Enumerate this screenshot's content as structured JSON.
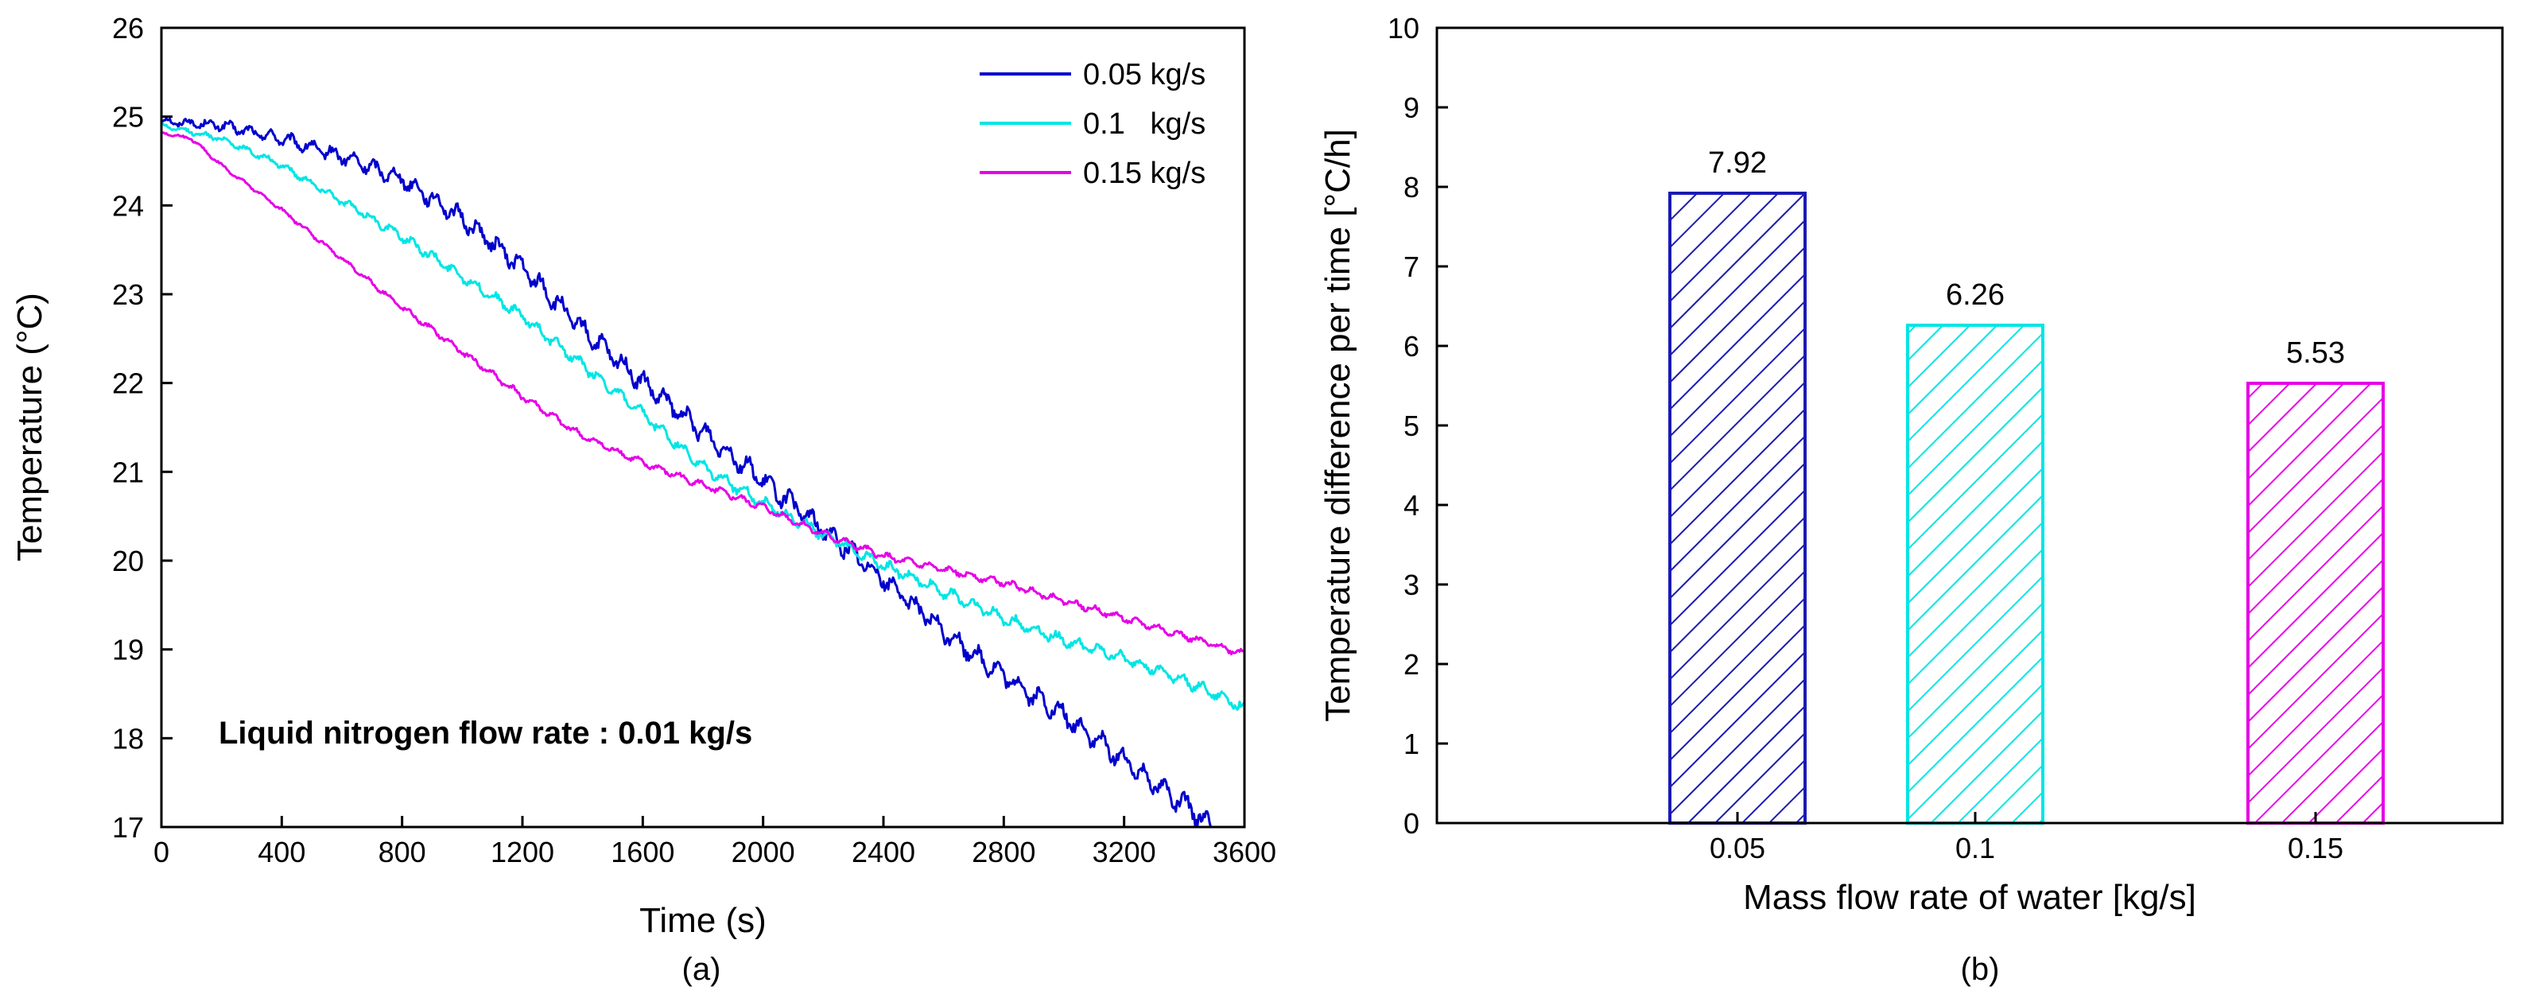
{
  "chart_data": [
    {
      "type": "line",
      "panel_label": "(a)",
      "xlabel": "Time (s)",
      "ylabel": "Temperature (°C)",
      "xlim": [
        0,
        3600
      ],
      "ylim": [
        17,
        26
      ],
      "x_ticks": [
        "0",
        "400",
        "800",
        "1200",
        "1600",
        "2000",
        "2400",
        "2800",
        "3200",
        "3600"
      ],
      "y_ticks": [
        "17",
        "18",
        "19",
        "20",
        "21",
        "22",
        "23",
        "24",
        "25",
        "26"
      ],
      "legend_position": "top-right",
      "annotation": "Liquid nitrogen flow rate : 0.01 kg/s",
      "series": [
        {
          "name": "0.05 kg/s",
          "color": "#0000cc",
          "noise": 0.09,
          "x": [
            0,
            200,
            400,
            600,
            800,
            1000,
            1200,
            1400,
            1600,
            1800,
            2000,
            2200,
            2400,
            2600,
            2800,
            3000,
            3200,
            3400,
            3500
          ],
          "y": [
            24.95,
            24.9,
            24.75,
            24.55,
            24.3,
            23.85,
            23.3,
            22.6,
            22.0,
            21.45,
            20.9,
            20.35,
            19.8,
            19.2,
            18.7,
            18.25,
            17.75,
            17.25,
            17.0
          ]
        },
        {
          "name": "0.1   kg/s",
          "color": "#00e5e5",
          "noise": 0.05,
          "x": [
            0,
            200,
            400,
            600,
            800,
            1000,
            1200,
            1400,
            1600,
            1800,
            2000,
            2200,
            2400,
            2600,
            2800,
            3000,
            3200,
            3400,
            3600
          ],
          "y": [
            24.9,
            24.75,
            24.45,
            24.05,
            23.65,
            23.2,
            22.75,
            22.2,
            21.65,
            21.05,
            20.65,
            20.3,
            19.95,
            19.65,
            19.35,
            19.1,
            18.9,
            18.65,
            18.35
          ]
        },
        {
          "name": "0.15 kg/s",
          "color": "#e600e6",
          "noise": 0.03,
          "x": [
            0,
            100,
            200,
            400,
            600,
            800,
            1000,
            1200,
            1400,
            1600,
            1800,
            2000,
            2200,
            2400,
            2600,
            2800,
            3000,
            3200,
            3400,
            3600
          ],
          "y": [
            24.82,
            24.75,
            24.45,
            23.95,
            23.4,
            22.85,
            22.35,
            21.85,
            21.4,
            21.1,
            20.85,
            20.6,
            20.3,
            20.05,
            19.9,
            19.75,
            19.55,
            19.35,
            19.15,
            18.95
          ]
        }
      ]
    },
    {
      "type": "bar",
      "panel_label": "(b)",
      "xlabel": "Mass flow rate of water [kg/s]",
      "ylabel": "Temperature difference per time [°C/h]",
      "ylim": [
        0,
        10
      ],
      "y_ticks": [
        "0",
        "1",
        "2",
        "3",
        "4",
        "5",
        "6",
        "7",
        "8",
        "9",
        "10"
      ],
      "categories": [
        "0.05",
        "0.1",
        "0.15"
      ],
      "values": [
        7.92,
        6.26,
        5.53
      ],
      "value_labels": [
        "7.92",
        "6.26",
        "5.53"
      ],
      "colors": [
        "#1a1ab3",
        "#00e5e5",
        "#e600e6"
      ],
      "fill_pattern": "diagonal-hatch"
    }
  ]
}
